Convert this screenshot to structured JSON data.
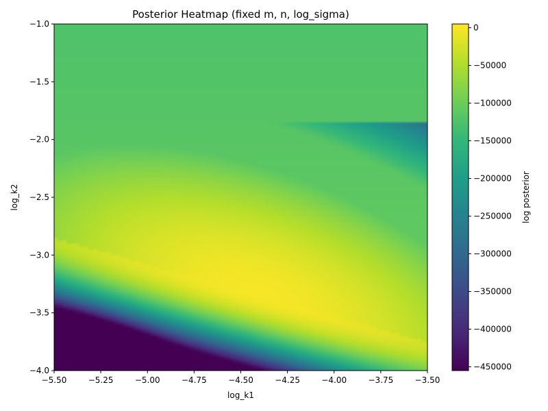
{
  "chart_data": {
    "type": "heatmap",
    "title": "Posterior Heatmap (fixed m, n, log_sigma)",
    "xlabel": "log_k1",
    "ylabel": "log_k2",
    "colorbar_label": "log posterior",
    "xlim": [
      -5.5,
      -3.5
    ],
    "ylim": [
      -4.0,
      -1.0
    ],
    "x_ticks": [
      -5.5,
      -5.25,
      -5.0,
      -4.75,
      -4.5,
      -4.25,
      -4.0,
      -3.75,
      -3.5
    ],
    "x_tick_labels": [
      "−5.50",
      "−5.25",
      "−5.00",
      "−4.75",
      "−4.50",
      "−4.25",
      "−4.00",
      "−3.75",
      "−3.50"
    ],
    "y_ticks": [
      -1.0,
      -1.5,
      -2.0,
      -2.5,
      -3.0,
      -3.5,
      -4.0
    ],
    "y_tick_labels": [
      "−1.0",
      "−1.5",
      "−2.0",
      "−2.5",
      "−3.0",
      "−3.5",
      "−4.0"
    ],
    "colorbar_range": [
      -455000,
      5000
    ],
    "colorbar_ticks": [
      0,
      -50000,
      -100000,
      -150000,
      -200000,
      -250000,
      -300000,
      -350000,
      -400000,
      -450000
    ],
    "colorbar_tick_labels": [
      "0",
      "−50000",
      "−100000",
      "−150000",
      "−200000",
      "−250000",
      "−300000",
      "−350000",
      "−400000",
      "−450000"
    ],
    "colormap": "viridis",
    "colormap_stops": [
      "#440154",
      "#482878",
      "#3e4989",
      "#31688e",
      "#26828e",
      "#1f9e89",
      "#35b779",
      "#6ece58",
      "#b5de2b",
      "#fde725"
    ],
    "ridge_max": {
      "log_k1": -4.4,
      "log_k2": -3.35,
      "value": 0
    },
    "grid": false
  }
}
